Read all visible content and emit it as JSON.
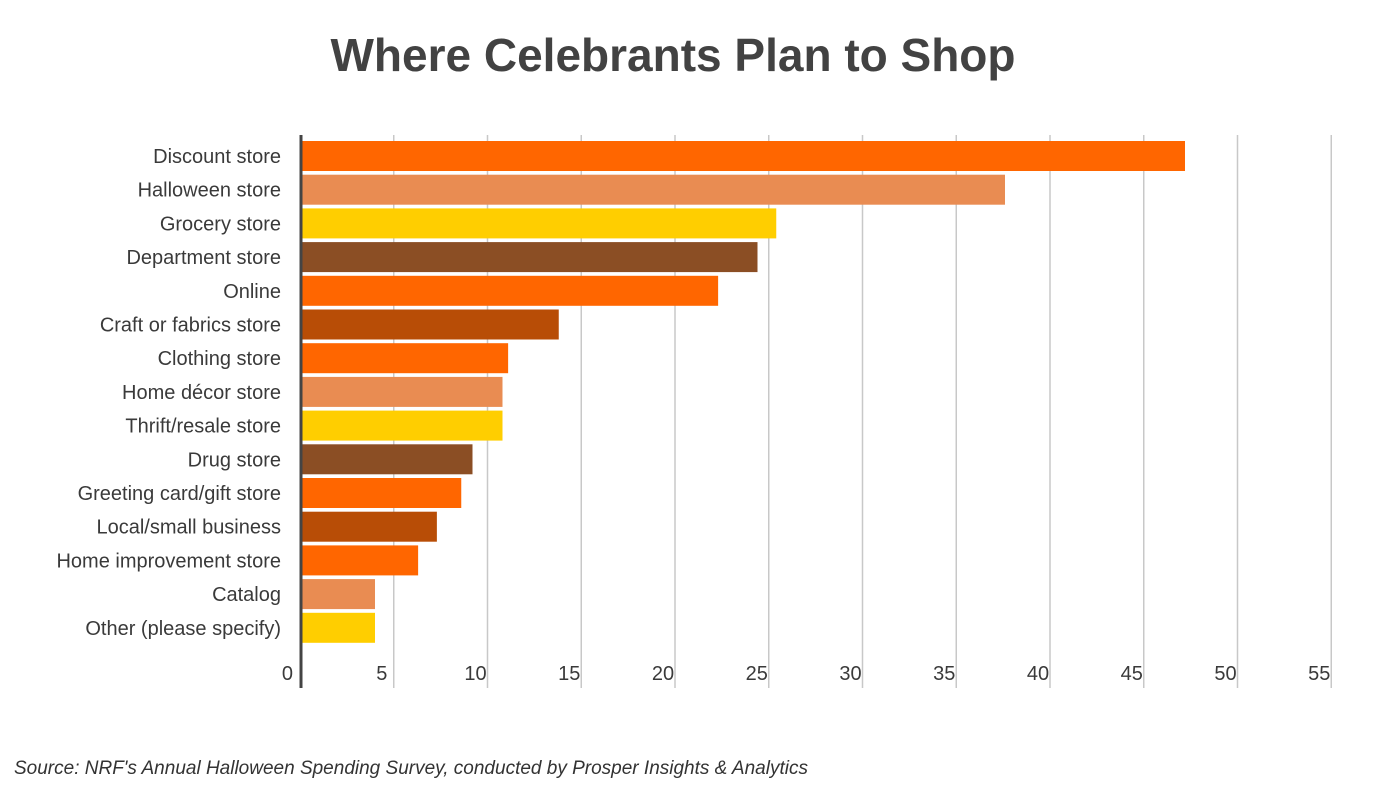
{
  "chart_data": {
    "type": "bar",
    "orientation": "horizontal",
    "title": "Where Celebrants Plan to Shop",
    "categories": [
      "Discount store",
      "Halloween store",
      "Grocery store",
      "Department store",
      "Online",
      "Craft or fabrics store",
      "Clothing store",
      "Home décor store",
      "Thrift/resale store",
      "Drug store",
      "Greeting card/gift store",
      "Local/small business",
      "Home improvement store",
      "Catalog",
      "Other (please specify)"
    ],
    "values": [
      47.2,
      37.6,
      25.4,
      24.4,
      22.3,
      13.8,
      11.1,
      10.8,
      10.8,
      9.2,
      8.6,
      7.3,
      6.3,
      4.0,
      4.0
    ],
    "colors": [
      "#FF6600",
      "#E98C52",
      "#FFCE00",
      "#8B4E24",
      "#FF6600",
      "#B84D06",
      "#FF6600",
      "#E98C52",
      "#FFCE00",
      "#8B4E24",
      "#FF6600",
      "#B84D06",
      "#FF6600",
      "#E98C52",
      "#FFCE00"
    ],
    "xlim": [
      0,
      55
    ],
    "xticks": [
      0,
      5,
      10,
      15,
      20,
      25,
      30,
      35,
      40,
      45,
      50,
      55
    ],
    "grid": true,
    "legend": "none",
    "xlabel": "",
    "ylabel": ""
  },
  "source": "Source: NRF's Annual Halloween Spending Survey, conducted by Prosper Insights & Analytics"
}
